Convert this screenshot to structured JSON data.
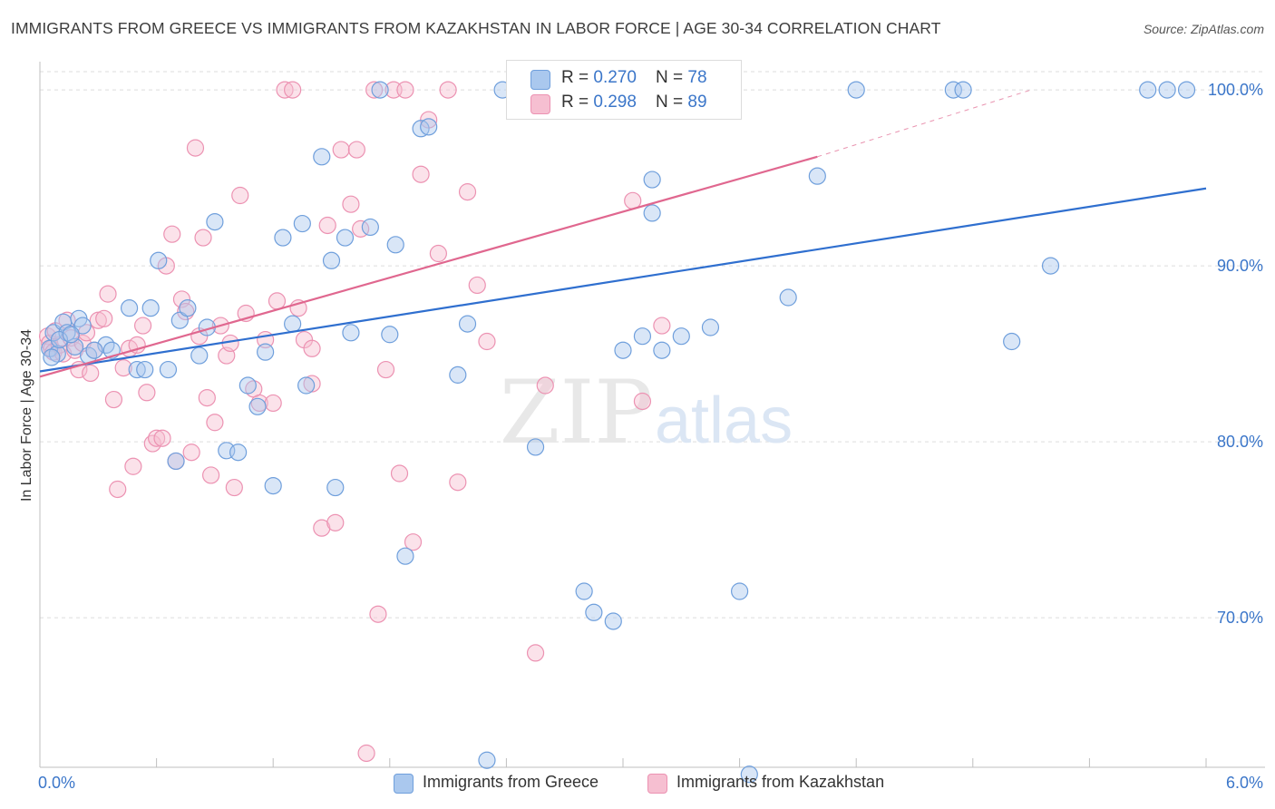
{
  "header": {
    "title": "IMMIGRANTS FROM GREECE VS IMMIGRANTS FROM KAZAKHSTAN IN LABOR FORCE | AGE 30-34 CORRELATION CHART",
    "source": "Source: ZipAtlas.com"
  },
  "legend": {
    "greece": {
      "r_label": "R = ",
      "r_value": "0.270",
      "n_label": "N = ",
      "n_value": "78"
    },
    "kazakhstan": {
      "r_label": "R = ",
      "r_value": "0.298",
      "n_label": "N = ",
      "n_value": "89"
    }
  },
  "bottom_legend": {
    "greece": "Immigrants from Greece",
    "kazakhstan": "Immigrants from Kazakhstan"
  },
  "watermark": {
    "zip": "ZIP",
    "atlas": "atlas"
  },
  "colors": {
    "greece_fill": "#aac8ee",
    "greece_stroke": "#6f9fdc",
    "greece_line": "#2f6fcf",
    "kazakhstan_fill": "#f6bfd1",
    "kazakhstan_stroke": "#ec92b2",
    "kazakhstan_line": "#e0678f",
    "tick_label": "#3b76c9",
    "grid": "#dedede"
  },
  "chart_data": {
    "type": "scatter",
    "title": "IMMIGRANTS FROM GREECE VS IMMIGRANTS FROM KAZAKHSTAN IN LABOR FORCE | AGE 30-34 CORRELATION CHART",
    "xlabel": "",
    "ylabel": "In Labor Force | Age 30-34",
    "xlim": [
      0,
      6
    ],
    "ylim": [
      61.5,
      101.5
    ],
    "x_tick_labels": [
      "0.0%",
      "6.0%"
    ],
    "y_ticks": [
      70,
      80,
      90,
      100
    ],
    "y_tick_labels": [
      "70.0%",
      "80.0%",
      "90.0%",
      "100.0%"
    ],
    "grid": true,
    "legend_position": "top-center",
    "series": [
      {
        "name": "Immigrants from Greece",
        "r": 0.27,
        "n": 78,
        "trend": {
          "x0": 0.0,
          "y0": 84.0,
          "x1": 6.0,
          "y1": 94.4
        },
        "points": [
          [
            0.05,
            85.3
          ],
          [
            0.07,
            86.2
          ],
          [
            0.09,
            85.0
          ],
          [
            0.12,
            86.8
          ],
          [
            0.14,
            86.2
          ],
          [
            0.18,
            85.4
          ],
          [
            0.2,
            87.0
          ],
          [
            0.22,
            86.6
          ],
          [
            0.25,
            84.9
          ],
          [
            0.34,
            85.5
          ],
          [
            0.37,
            85.2
          ],
          [
            0.46,
            87.6
          ],
          [
            0.5,
            84.1
          ],
          [
            0.54,
            84.1
          ],
          [
            0.57,
            87.6
          ],
          [
            0.61,
            90.3
          ],
          [
            0.66,
            84.1
          ],
          [
            0.7,
            78.9
          ],
          [
            0.72,
            86.9
          ],
          [
            0.76,
            87.6
          ],
          [
            0.82,
            84.9
          ],
          [
            0.86,
            86.5
          ],
          [
            0.9,
            92.5
          ],
          [
            0.96,
            79.5
          ],
          [
            1.02,
            79.4
          ],
          [
            1.07,
            83.2
          ],
          [
            1.12,
            82.0
          ],
          [
            1.16,
            85.1
          ],
          [
            1.2,
            77.5
          ],
          [
            1.25,
            91.6
          ],
          [
            1.3,
            86.7
          ],
          [
            1.35,
            92.4
          ],
          [
            1.37,
            83.2
          ],
          [
            1.45,
            96.2
          ],
          [
            1.5,
            90.3
          ],
          [
            1.52,
            77.4
          ],
          [
            1.57,
            91.6
          ],
          [
            1.6,
            86.2
          ],
          [
            1.7,
            92.2
          ],
          [
            1.75,
            100.0
          ],
          [
            1.8,
            86.1
          ],
          [
            1.83,
            91.2
          ],
          [
            1.88,
            73.5
          ],
          [
            1.96,
            97.8
          ],
          [
            2.0,
            97.9
          ],
          [
            2.15,
            83.8
          ],
          [
            2.2,
            86.7
          ],
          [
            2.3,
            61.9
          ],
          [
            2.38,
            100.0
          ],
          [
            2.45,
            100.0
          ],
          [
            2.55,
            79.7
          ],
          [
            2.65,
            100.0
          ],
          [
            2.8,
            71.5
          ],
          [
            2.85,
            70.3
          ],
          [
            2.95,
            69.8
          ],
          [
            3.0,
            85.2
          ],
          [
            3.1,
            86.0
          ],
          [
            3.15,
            94.9
          ],
          [
            3.15,
            93.0
          ],
          [
            3.2,
            85.2
          ],
          [
            3.3,
            86.0
          ],
          [
            3.45,
            86.5
          ],
          [
            3.6,
            71.5
          ],
          [
            3.65,
            61.1
          ],
          [
            3.85,
            88.2
          ],
          [
            4.0,
            95.1
          ],
          [
            4.2,
            100.0
          ],
          [
            4.7,
            100.0
          ],
          [
            4.75,
            100.0
          ],
          [
            5.0,
            85.7
          ],
          [
            5.2,
            90.0
          ],
          [
            5.7,
            100.0
          ],
          [
            5.8,
            100.0
          ],
          [
            5.9,
            100.0
          ],
          [
            0.06,
            84.8
          ],
          [
            0.1,
            85.8
          ],
          [
            0.16,
            86.1
          ],
          [
            0.28,
            85.2
          ]
        ]
      },
      {
        "name": "Immigrants from Kazakhstan",
        "r": 0.298,
        "n": 89,
        "trend": {
          "x0": 0.0,
          "y0": 83.7,
          "x1": 4.0,
          "y1": 96.2,
          "dashed_to": {
            "x": 5.1,
            "y": 100.0
          }
        },
        "points": [
          [
            0.04,
            86.0
          ],
          [
            0.05,
            85.6
          ],
          [
            0.06,
            85.3
          ],
          [
            0.07,
            85.1
          ],
          [
            0.1,
            85.5
          ],
          [
            0.12,
            85.0
          ],
          [
            0.14,
            86.9
          ],
          [
            0.16,
            85.9
          ],
          [
            0.18,
            85.2
          ],
          [
            0.2,
            84.1
          ],
          [
            0.22,
            85.6
          ],
          [
            0.24,
            86.2
          ],
          [
            0.28,
            85.2
          ],
          [
            0.3,
            86.9
          ],
          [
            0.33,
            87.0
          ],
          [
            0.35,
            88.4
          ],
          [
            0.38,
            82.4
          ],
          [
            0.4,
            77.3
          ],
          [
            0.43,
            84.2
          ],
          [
            0.46,
            85.3
          ],
          [
            0.5,
            85.5
          ],
          [
            0.53,
            86.6
          ],
          [
            0.55,
            82.8
          ],
          [
            0.58,
            79.9
          ],
          [
            0.6,
            80.2
          ],
          [
            0.63,
            80.2
          ],
          [
            0.65,
            90.0
          ],
          [
            0.68,
            91.8
          ],
          [
            0.7,
            78.9
          ],
          [
            0.73,
            88.1
          ],
          [
            0.75,
            87.4
          ],
          [
            0.78,
            79.4
          ],
          [
            0.8,
            96.7
          ],
          [
            0.82,
            86.0
          ],
          [
            0.84,
            91.6
          ],
          [
            0.86,
            82.5
          ],
          [
            0.88,
            78.1
          ],
          [
            0.9,
            81.1
          ],
          [
            0.93,
            86.6
          ],
          [
            0.96,
            84.9
          ],
          [
            0.98,
            85.6
          ],
          [
            1.0,
            77.4
          ],
          [
            1.03,
            94.0
          ],
          [
            1.06,
            87.3
          ],
          [
            1.1,
            83.0
          ],
          [
            1.13,
            82.2
          ],
          [
            1.16,
            85.8
          ],
          [
            1.2,
            82.2
          ],
          [
            1.22,
            88.0
          ],
          [
            1.26,
            100.0
          ],
          [
            1.3,
            100.0
          ],
          [
            1.33,
            87.6
          ],
          [
            1.36,
            85.8
          ],
          [
            1.4,
            85.3
          ],
          [
            1.45,
            75.1
          ],
          [
            1.48,
            92.3
          ],
          [
            1.52,
            75.4
          ],
          [
            1.55,
            96.6
          ],
          [
            1.6,
            93.5
          ],
          [
            1.63,
            96.6
          ],
          [
            1.65,
            92.1
          ],
          [
            1.68,
            62.3
          ],
          [
            1.72,
            100.0
          ],
          [
            1.74,
            70.2
          ],
          [
            1.78,
            84.1
          ],
          [
            1.82,
            100.0
          ],
          [
            1.85,
            78.2
          ],
          [
            1.88,
            100.0
          ],
          [
            1.92,
            74.3
          ],
          [
            1.96,
            95.2
          ],
          [
            2.0,
            98.3
          ],
          [
            2.05,
            90.7
          ],
          [
            2.1,
            100.0
          ],
          [
            2.15,
            77.7
          ],
          [
            2.2,
            94.2
          ],
          [
            2.25,
            88.9
          ],
          [
            2.3,
            85.7
          ],
          [
            2.55,
            68.0
          ],
          [
            2.6,
            83.2
          ],
          [
            2.7,
            100.0
          ],
          [
            2.9,
            100.0
          ],
          [
            3.05,
            93.7
          ],
          [
            3.1,
            82.3
          ],
          [
            3.15,
            100.0
          ],
          [
            3.2,
            86.6
          ],
          [
            0.08,
            86.3
          ],
          [
            0.26,
            83.9
          ],
          [
            0.48,
            78.6
          ],
          [
            1.4,
            83.3
          ]
        ]
      }
    ]
  }
}
